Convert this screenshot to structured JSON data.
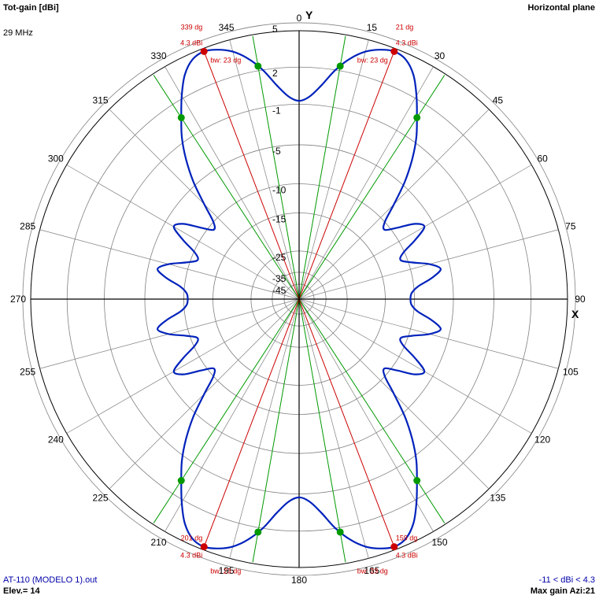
{
  "header": {
    "title": "Tot-gain [dBi]",
    "plane": "Horizontal plane",
    "frequency": "29 MHz"
  },
  "footer": {
    "file": "AT-110 (MODELO 1).out",
    "elevation": "Elev.= 14",
    "range": "-11 < dBi < 4.3",
    "max_gain": "Max gain Azi:21"
  },
  "colors": {
    "pattern": "#0022bb",
    "grid": "#808080",
    "axes": "#000000",
    "peak": "#cc0000",
    "beamwidth": "#009900"
  },
  "chart_data": {
    "type": "polar",
    "title": "Tot-gain [dBi]",
    "axis_labels": {
      "y": "Y",
      "x": "X"
    },
    "angle_ticks": [
      "0",
      "15",
      "30",
      "45",
      "60",
      "75",
      "90",
      "105",
      "120",
      "135",
      "150",
      "165",
      "180",
      "195",
      "210",
      "225",
      "240",
      "255",
      "270",
      "285",
      "300",
      "315",
      "330",
      "345"
    ],
    "radial_ticks": [
      "5",
      "2",
      "-1",
      "-5",
      "-10",
      "-15",
      "-25",
      "-35",
      "-45"
    ],
    "pattern_series": {
      "name": "",
      "azimuth_deg": [
        0,
        3,
        6,
        9,
        12,
        15,
        18,
        21,
        24,
        27,
        30,
        33,
        36,
        39,
        42,
        45,
        48,
        51,
        54,
        57,
        60,
        63,
        66,
        69,
        72,
        75,
        78,
        81,
        84,
        87,
        90
      ],
      "gain_dbi": [
        -0.7,
        -0.3,
        0.7,
        2.0,
        3.0,
        3.7,
        4.1,
        4.3,
        4.1,
        3.4,
        2.2,
        0.8,
        -0.6,
        -2.4,
        -4.6,
        -7.4,
        -10.0,
        -10.8,
        -9.1,
        -6.9,
        -6.1,
        -7.9,
        -10.2,
        -11.0,
        -9.5,
        -7.3,
        -6.1,
        -7.4,
        -9.4,
        -10.4,
        -10.6
      ],
      "symmetry": "mirrored about both axes"
    },
    "peaks": [
      {
        "angle_label": "21 dg",
        "gain_label": "4.3 dBi",
        "bw_label": "bw: 23 dg",
        "azimuth_deg": 21
      },
      {
        "angle_label": "339 dg",
        "gain_label": "4.3 dBi",
        "bw_label": "bw: 23 dg",
        "azimuth_deg": 339
      },
      {
        "angle_label": "159 dg",
        "gain_label": "4.3 dBi",
        "bw_label": "bw: 23 dg",
        "azimuth_deg": 159
      },
      {
        "angle_label": "201 dg",
        "gain_label": "4.3 dBi",
        "bw_label": "bw: 23 dg",
        "azimuth_deg": 201
      }
    ],
    "beamwidth_lines_deg": [
      10,
      33,
      147,
      170,
      190,
      213,
      327,
      350
    ],
    "grid": true
  }
}
